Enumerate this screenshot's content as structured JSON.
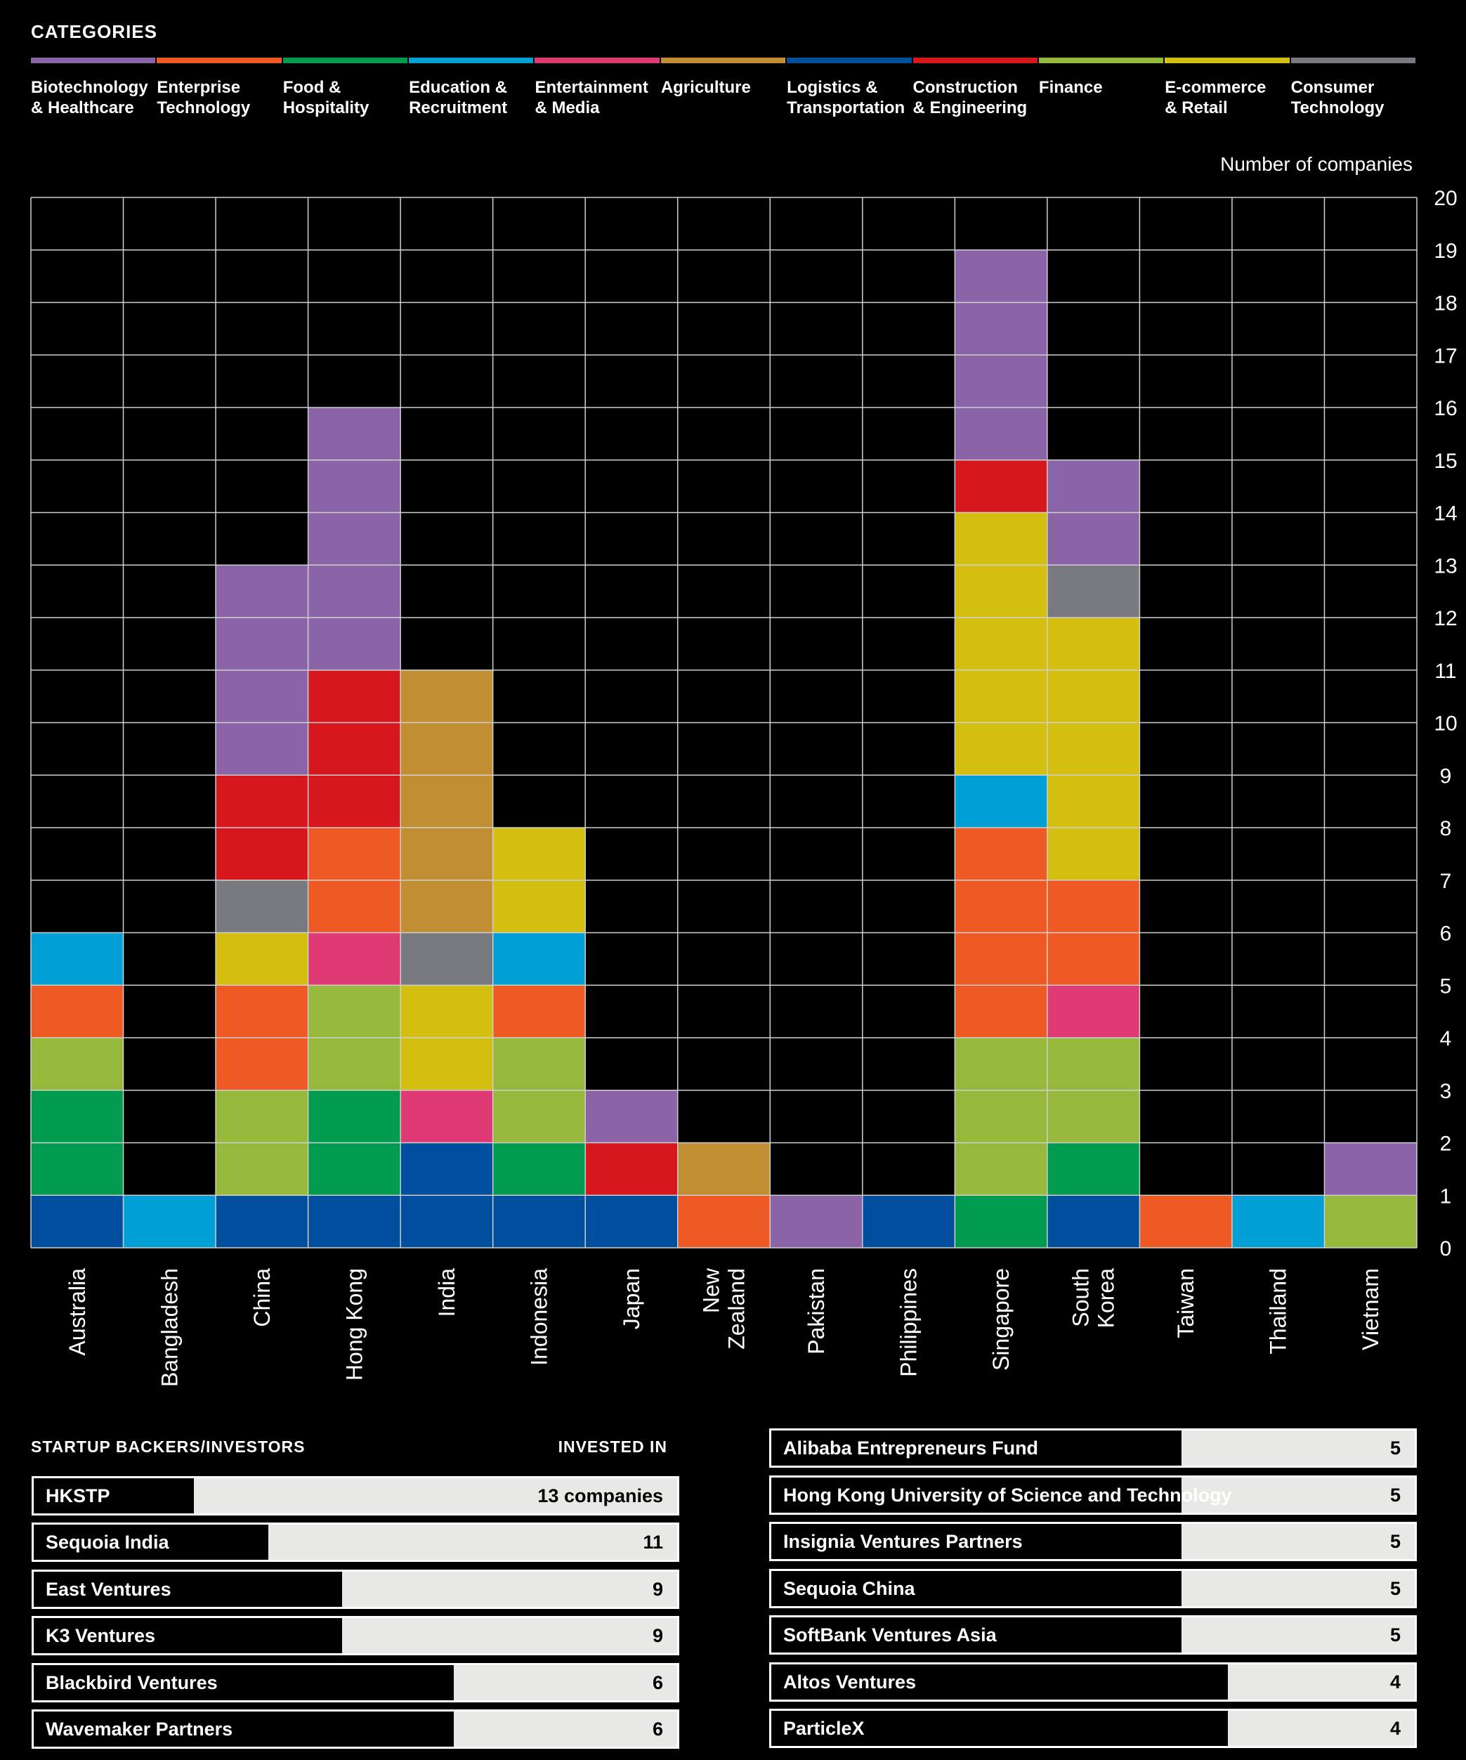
{
  "categories_title": "CATEGORIES",
  "categories": [
    {
      "key": "bio",
      "label": "Biotechnology\n& Healthcare",
      "color": "#8b64a8"
    },
    {
      "key": "ent",
      "label": "Enterprise\nTechnology",
      "color": "#ef5a24"
    },
    {
      "key": "food",
      "label": "Food &\nHospitality",
      "color": "#009b4e"
    },
    {
      "key": "edu",
      "label": "Education &\nRecruitment",
      "color": "#00a0d6"
    },
    {
      "key": "media",
      "label": "Entertainment\n& Media",
      "color": "#e03a74"
    },
    {
      "key": "agri",
      "label": "Agriculture",
      "color": "#c18e34"
    },
    {
      "key": "log",
      "label": "Logistics &\nTransportation",
      "color": "#004f9f"
    },
    {
      "key": "cons",
      "label": "Construction\n& Engineering",
      "color": "#d6171e"
    },
    {
      "key": "fin",
      "label": "Finance",
      "color": "#97b93b"
    },
    {
      "key": "ecom",
      "label": "E-commerce\n& Retail",
      "color": "#d4be10"
    },
    {
      "key": "ctech",
      "label": "Consumer\nTechnology",
      "color": "#787a80"
    }
  ],
  "chart_data": {
    "type": "bar",
    "stacked": true,
    "ylabel": "Number of companies",
    "ylim": [
      0,
      20
    ],
    "yticks": [
      0,
      1,
      2,
      3,
      4,
      5,
      6,
      7,
      8,
      9,
      10,
      11,
      12,
      13,
      14,
      15,
      16,
      17,
      18,
      19,
      20
    ],
    "grid": true,
    "categories": [
      "Australia",
      "Bangladesh",
      "China",
      "Hong Kong",
      "India",
      "Indonesia",
      "Japan",
      "New\nZealand",
      "Pakistan",
      "Philippines",
      "Singapore",
      "South\nKorea",
      "Taiwan",
      "Thailand",
      "Vietnam"
    ],
    "stacks": [
      [
        [
          "log",
          1
        ],
        [
          "food",
          2
        ],
        [
          "fin",
          1
        ],
        [
          "ent",
          1
        ],
        [
          "edu",
          1
        ]
      ],
      [
        [
          "edu",
          1
        ]
      ],
      [
        [
          "log",
          1
        ],
        [
          "fin",
          2
        ],
        [
          "ent",
          2
        ],
        [
          "ecom",
          1
        ],
        [
          "ctech",
          1
        ],
        [
          "cons",
          2
        ],
        [
          "bio",
          4
        ]
      ],
      [
        [
          "log",
          1
        ],
        [
          "food",
          2
        ],
        [
          "fin",
          2
        ],
        [
          "media",
          1
        ],
        [
          "ent",
          2
        ],
        [
          "cons",
          3
        ],
        [
          "bio",
          5
        ]
      ],
      [
        [
          "log",
          2
        ],
        [
          "media",
          1
        ],
        [
          "ecom",
          2
        ],
        [
          "ctech",
          1
        ],
        [
          "agri",
          5
        ]
      ],
      [
        [
          "log",
          1
        ],
        [
          "food",
          1
        ],
        [
          "fin",
          2
        ],
        [
          "ent",
          1
        ],
        [
          "edu",
          1
        ],
        [
          "ecom",
          2
        ]
      ],
      [
        [
          "log",
          1
        ],
        [
          "cons",
          1
        ],
        [
          "bio",
          1
        ]
      ],
      [
        [
          "ent",
          1
        ],
        [
          "agri",
          1
        ]
      ],
      [
        [
          "bio",
          1
        ]
      ],
      [
        [
          "log",
          1
        ]
      ],
      [
        [
          "food",
          1
        ],
        [
          "fin",
          3
        ],
        [
          "ent",
          4
        ],
        [
          "edu",
          1
        ],
        [
          "ecom",
          5
        ],
        [
          "cons",
          1
        ],
        [
          "bio",
          4
        ]
      ],
      [
        [
          "log",
          1
        ],
        [
          "food",
          1
        ],
        [
          "fin",
          2
        ],
        [
          "media",
          1
        ],
        [
          "ent",
          2
        ],
        [
          "ecom",
          5
        ],
        [
          "ctech",
          1
        ],
        [
          "bio",
          2
        ]
      ],
      [
        [
          "ent",
          1
        ]
      ],
      [
        [
          "edu",
          1
        ]
      ],
      [
        [
          "fin",
          1
        ],
        [
          "bio",
          1
        ]
      ]
    ]
  },
  "investors": {
    "title": "STARTUP BACKERS/INVESTORS",
    "invested_in": "INVESTED IN",
    "left": [
      {
        "name": "HKSTP",
        "value": 13,
        "value_text": "13 companies"
      },
      {
        "name": "Sequoia India",
        "value": 11,
        "value_text": "11"
      },
      {
        "name": "East Ventures",
        "value": 9,
        "value_text": "9"
      },
      {
        "name": "K3 Ventures",
        "value": 9,
        "value_text": "9"
      },
      {
        "name": "Blackbird Ventures",
        "value": 6,
        "value_text": "6"
      },
      {
        "name": "Wavemaker Partners",
        "value": 6,
        "value_text": "6"
      }
    ],
    "right": [
      {
        "name": "Alibaba Entrepreneurs Fund",
        "value": 5,
        "value_text": "5"
      },
      {
        "name": "Hong Kong University of Science and Technology",
        "value": 5,
        "value_text": "5"
      },
      {
        "name": "Insignia Ventures Partners",
        "value": 5,
        "value_text": "5"
      },
      {
        "name": "Sequoia China",
        "value": 5,
        "value_text": "5"
      },
      {
        "name": "SoftBank Ventures Asia",
        "value": 5,
        "value_text": "5"
      },
      {
        "name": "Altos Ventures",
        "value": 4,
        "value_text": "4"
      },
      {
        "name": "ParticleX",
        "value": 4,
        "value_text": "4"
      }
    ]
  }
}
